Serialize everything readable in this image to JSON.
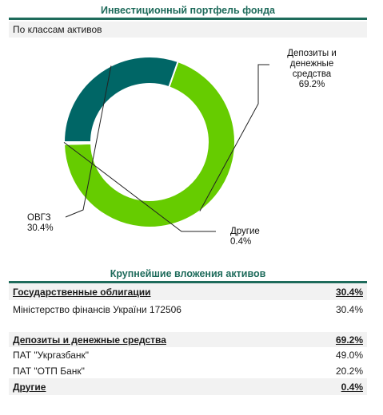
{
  "header": {
    "title": "Инвестиционный портфель фонда",
    "subtitle": "По классам активов"
  },
  "chart_data": {
    "type": "pie",
    "style": "donut",
    "slices": [
      {
        "label": "Депозиты и денежные средства",
        "value": 69.2,
        "value_label": "69.2%",
        "color": "#66cc00"
      },
      {
        "label": "Другие",
        "value": 0.4,
        "value_label": "0.4%",
        "color": "#ffffff"
      },
      {
        "label": "ОВГЗ",
        "value": 30.4,
        "value_label": "30.4%",
        "color": "#006666"
      }
    ],
    "label_lines": {
      "deposits": [
        "Депозиты и",
        "денежные",
        "средства",
        "69.2%"
      ],
      "other": [
        "Другие",
        "0.4%"
      ],
      "ovgz": [
        "ОВГЗ",
        "30.4%"
      ]
    }
  },
  "holdings": {
    "title": "Крупнейшие вложения активов",
    "rows": [
      {
        "name": "Государственные облигации",
        "value": "30.4%",
        "group": true
      },
      {
        "name": "Міністерство фінансів України 172506",
        "value": "30.4%",
        "group": false
      },
      {
        "name": "",
        "value": "",
        "group": false,
        "spacer": true
      },
      {
        "name": "Депозиты и денежные средства",
        "value": "69.2%",
        "group": true
      },
      {
        "name": "ПАТ \"Укргазбанк\"",
        "value": "49.0%",
        "group": false
      },
      {
        "name": "ПАТ \"ОТП Банк\"",
        "value": "20.2%",
        "group": false
      },
      {
        "name": "Другие",
        "value": "0.4%",
        "group": true
      }
    ]
  }
}
